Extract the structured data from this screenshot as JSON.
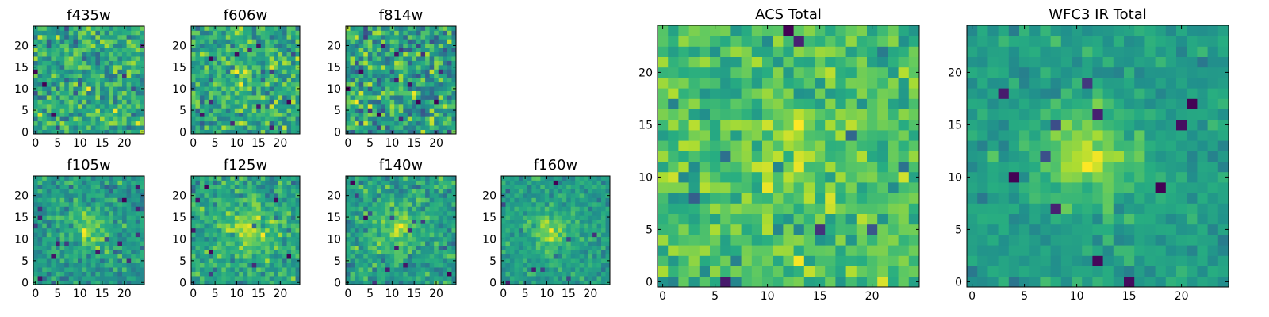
{
  "colors": {
    "colormap": "viridis",
    "frame": "#000000",
    "background": "#ffffff"
  },
  "chart_data": [
    {
      "type": "heatmap",
      "title": "f435w",
      "grid_size": 25,
      "xlim": [
        -0.5,
        24.5
      ],
      "ylim": [
        -0.5,
        24.5
      ],
      "xticks": [
        0,
        5,
        10,
        15,
        20
      ],
      "yticks": [
        0,
        5,
        10,
        15,
        20
      ],
      "noise": 0.5,
      "source_amplitude": 0.0,
      "source_center": [
        12,
        12
      ],
      "source_sigma": 3.5,
      "seed": 11
    },
    {
      "type": "heatmap",
      "title": "f606w",
      "grid_size": 25,
      "xlim": [
        -0.5,
        24.5
      ],
      "ylim": [
        -0.5,
        24.5
      ],
      "xticks": [
        0,
        5,
        10,
        15,
        20
      ],
      "yticks": [
        0,
        5,
        10,
        15,
        20
      ],
      "noise": 0.45,
      "source_amplitude": 0.25,
      "source_center": [
        12,
        12
      ],
      "source_sigma": 3.0,
      "seed": 23
    },
    {
      "type": "heatmap",
      "title": "f814w",
      "grid_size": 25,
      "xlim": [
        -0.5,
        24.5
      ],
      "ylim": [
        -0.5,
        24.5
      ],
      "xticks": [
        0,
        5,
        10,
        15,
        20
      ],
      "yticks": [
        0,
        5,
        10,
        15,
        20
      ],
      "noise": 0.5,
      "source_amplitude": 0.05,
      "source_center": [
        12,
        12
      ],
      "source_sigma": 3.0,
      "seed": 37
    },
    {
      "type": "heatmap",
      "title": "f105w",
      "grid_size": 25,
      "xlim": [
        -0.5,
        24.5
      ],
      "ylim": [
        -0.5,
        24.5
      ],
      "xticks": [
        0,
        5,
        10,
        15,
        20
      ],
      "yticks": [
        0,
        5,
        10,
        15,
        20
      ],
      "noise": 0.35,
      "source_amplitude": 0.45,
      "source_center": [
        12,
        12
      ],
      "source_sigma": 3.5,
      "seed": 41
    },
    {
      "type": "heatmap",
      "title": "f125w",
      "grid_size": 25,
      "xlim": [
        -0.5,
        24.5
      ],
      "ylim": [
        -0.5,
        24.5
      ],
      "xticks": [
        0,
        5,
        10,
        15,
        20
      ],
      "yticks": [
        0,
        5,
        10,
        15,
        20
      ],
      "noise": 0.35,
      "source_amplitude": 0.4,
      "source_center": [
        12,
        12
      ],
      "source_sigma": 4.0,
      "seed": 53
    },
    {
      "type": "heatmap",
      "title": "f140w",
      "grid_size": 25,
      "xlim": [
        -0.5,
        24.5
      ],
      "ylim": [
        -0.5,
        24.5
      ],
      "xticks": [
        0,
        5,
        10,
        15,
        20
      ],
      "yticks": [
        0,
        5,
        10,
        15,
        20
      ],
      "noise": 0.35,
      "source_amplitude": 0.4,
      "source_center": [
        11,
        12
      ],
      "source_sigma": 4.0,
      "seed": 67
    },
    {
      "type": "heatmap",
      "title": "f160w",
      "grid_size": 25,
      "xlim": [
        -0.5,
        24.5
      ],
      "ylim": [
        -0.5,
        24.5
      ],
      "xticks": [
        0,
        5,
        10,
        15,
        20
      ],
      "yticks": [
        0,
        5,
        10,
        15,
        20
      ],
      "noise": 0.3,
      "source_amplitude": 0.5,
      "source_center": [
        11,
        12
      ],
      "source_sigma": 3.0,
      "seed": 79
    },
    {
      "type": "heatmap",
      "title": "ACS Total",
      "grid_size": 25,
      "xlim": [
        -0.5,
        24.5
      ],
      "ylim": [
        -0.5,
        24.5
      ],
      "xticks": [
        0,
        5,
        10,
        15,
        20
      ],
      "yticks": [
        0,
        5,
        10,
        15,
        20
      ],
      "noise": 0.4,
      "source_amplitude": 0.25,
      "source_center": [
        12,
        12
      ],
      "source_sigma": 3.0,
      "seed": 97
    },
    {
      "type": "heatmap",
      "title": "WFC3 IR Total",
      "grid_size": 25,
      "xlim": [
        -0.5,
        24.5
      ],
      "ylim": [
        -0.5,
        24.5
      ],
      "xticks": [
        0,
        5,
        10,
        15,
        20
      ],
      "yticks": [
        0,
        5,
        10,
        15,
        20
      ],
      "noise": 0.2,
      "source_amplitude": 0.55,
      "source_center": [
        11,
        12
      ],
      "source_sigma": 3.0,
      "seed": 113
    }
  ]
}
